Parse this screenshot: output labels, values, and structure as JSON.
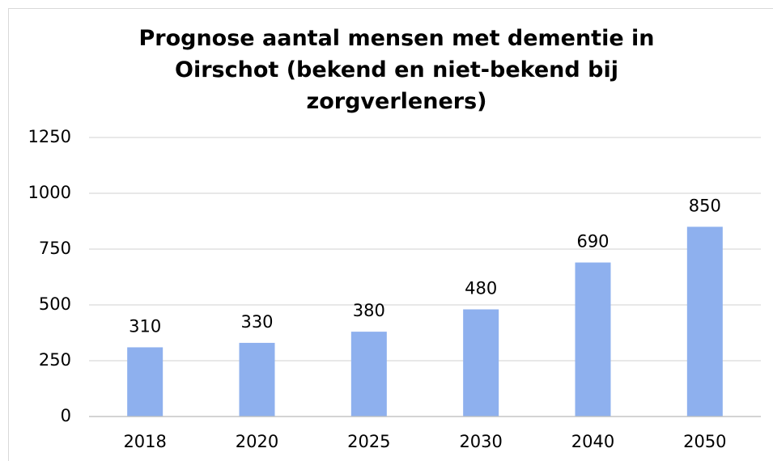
{
  "chart_data": {
    "type": "bar",
    "title": "Prognose aantal mensen met dementie in Oirschot (bekend en niet-bekend bij zorgverleners)",
    "categories": [
      "2018",
      "2020",
      "2025",
      "2030",
      "2040",
      "2050"
    ],
    "values": [
      310,
      330,
      380,
      480,
      690,
      850
    ],
    "color": "#8eb0ee",
    "ylim": [
      0,
      1250
    ],
    "yticks": [
      0,
      250,
      500,
      750,
      1000,
      1250
    ],
    "grid": true,
    "data_labels": true
  }
}
